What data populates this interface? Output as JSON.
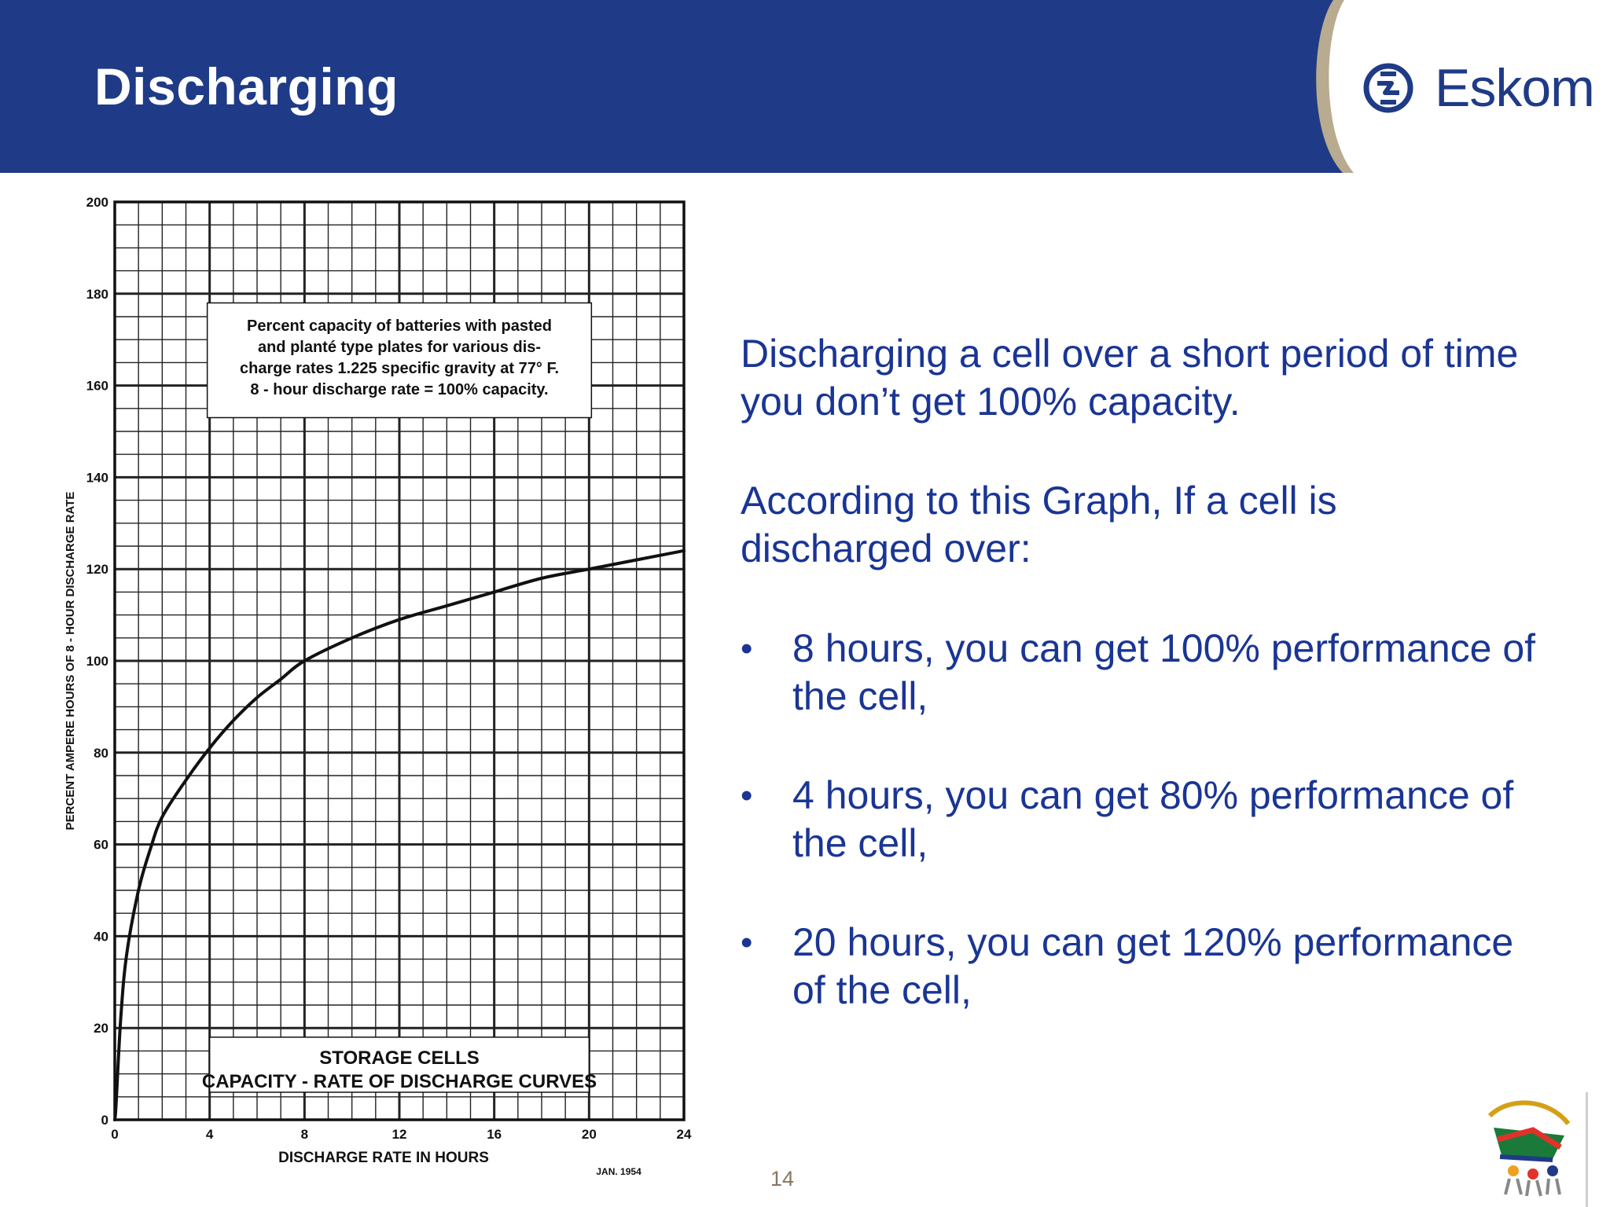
{
  "slide": {
    "title": "Discharging",
    "brand": {
      "name": "Eskom",
      "color": "#1f3b87"
    },
    "page_number": "14"
  },
  "text": {
    "paragraph1": "Discharging a cell over a short period of time you don’t get 100% capacity.",
    "paragraph2": "According to this Graph, If a cell is discharged over:",
    "bullets": [
      "8 hours, you can get 100% performance of the cell,",
      "4 hours, you can get 80% performance of the cell,",
      "20 hours, you can get 120% performance of the cell,"
    ],
    "bullet_symbol": "•",
    "color": "#1a3594"
  },
  "chart_data": {
    "type": "line",
    "title": "STORAGE CELLS",
    "subtitle": "CAPACITY - RATE OF DISCHARGE CURVES",
    "note_lines": [
      "Percent capacity of batteries with pasted",
      "and planté type plates for various dis-",
      "charge rates 1.225 specific gravity at 77° F.",
      "8 - hour discharge rate = 100% capacity."
    ],
    "date_note": "JAN. 1954",
    "xlabel": "DISCHARGE RATE IN HOURS",
    "ylabel": "PERCENT AMPERE HOURS OF 8 - HOUR DISCHARGE RATE",
    "xlim": [
      0,
      24
    ],
    "ylim": [
      0,
      200
    ],
    "xticks": [
      0,
      4,
      8,
      12,
      16,
      20,
      24
    ],
    "yticks": [
      0,
      20,
      40,
      60,
      80,
      100,
      120,
      140,
      160,
      180,
      200
    ],
    "grid": true,
    "series": [
      {
        "x": [
          0.05,
          0.25,
          0.5,
          1,
          1.5,
          2,
          3,
          4,
          5,
          6,
          7,
          8,
          10,
          12,
          14,
          16,
          18,
          20,
          22,
          24
        ],
        "y": [
          3,
          22,
          36,
          50,
          59,
          66,
          74,
          81,
          87,
          92,
          96,
          100,
          105,
          109,
          112,
          115,
          118,
          120,
          122,
          124
        ]
      }
    ],
    "colors": {
      "line": "#111111",
      "grid": "#222222",
      "paper": "#ffffff"
    }
  }
}
